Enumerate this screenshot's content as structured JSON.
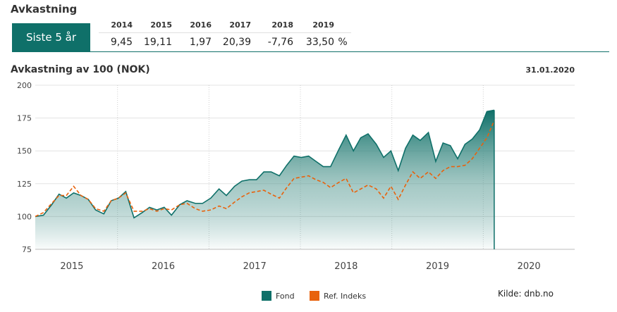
{
  "header": {
    "title": "Avkastning",
    "tab_label": "Siste 5 år"
  },
  "returns": {
    "years": [
      "2014",
      "2015",
      "2016",
      "2017",
      "2018",
      "2019"
    ],
    "values": [
      "9,45",
      "19,11",
      "1,97",
      "20,39",
      "-7,76",
      "33,50"
    ],
    "unit": "%"
  },
  "chart_data": {
    "type": "area",
    "title": "Avkastning av 100 (NOK)",
    "date": "31.01.2020",
    "ylim": [
      75,
      200
    ],
    "yticks": [
      75,
      100,
      125,
      150,
      175,
      200
    ],
    "xlim": [
      2014.6,
      2020.5
    ],
    "xlabels": [
      "2015",
      "2016",
      "2017",
      "2018",
      "2019",
      "2020"
    ],
    "grid": "horizontal solid, vertical dotted at year boundaries",
    "legend_position": "bottom-center",
    "series": [
      {
        "name": "Fond",
        "color": "#0f7069",
        "x": [
          2014.6,
          2014.69,
          2014.78,
          2014.86,
          2014.94,
          2015.02,
          2015.1,
          2015.18,
          2015.26,
          2015.35,
          2015.43,
          2015.51,
          2015.59,
          2015.68,
          2015.77,
          2015.85,
          2015.93,
          2016.01,
          2016.09,
          2016.18,
          2016.26,
          2016.35,
          2016.43,
          2016.52,
          2016.61,
          2016.69,
          2016.78,
          2016.86,
          2016.94,
          2017.02,
          2017.1,
          2017.18,
          2017.27,
          2017.35,
          2017.43,
          2017.51,
          2017.59,
          2017.67,
          2017.75,
          2017.83,
          2017.92,
          2018.0,
          2018.08,
          2018.16,
          2018.24,
          2018.33,
          2018.41,
          2018.49,
          2018.57,
          2018.65,
          2018.73,
          2018.81,
          2018.9,
          2018.98,
          2019.06,
          2019.14,
          2019.22,
          2019.3,
          2019.38,
          2019.46,
          2019.54,
          2019.62,
          2019.7,
          2019.78,
          2019.86
        ],
        "y": [
          100,
          101,
          109,
          117,
          114,
          118,
          116,
          113,
          105,
          102,
          112,
          114,
          119,
          99,
          103,
          107,
          105,
          107,
          101,
          109,
          112,
          110,
          110,
          114,
          121,
          116,
          123,
          127,
          128,
          128,
          134,
          134,
          131,
          139,
          146,
          145,
          146,
          142,
          138,
          138,
          151,
          162,
          150,
          160,
          163,
          155,
          145,
          150,
          135,
          152,
          162,
          158,
          164,
          142,
          156,
          154,
          144,
          155,
          159,
          166,
          180,
          181,
          null,
          null,
          null
        ],
        "y_last": 181
      },
      {
        "name": "Ref. Indeks",
        "color": "#e8620c",
        "style": "dashed",
        "x": [
          2014.6,
          2014.69,
          2014.78,
          2014.86,
          2014.94,
          2015.02,
          2015.1,
          2015.18,
          2015.26,
          2015.35,
          2015.43,
          2015.51,
          2015.59,
          2015.68,
          2015.77,
          2015.85,
          2015.93,
          2016.01,
          2016.09,
          2016.18,
          2016.26,
          2016.35,
          2016.43,
          2016.52,
          2016.61,
          2016.69,
          2016.78,
          2016.86,
          2016.94,
          2017.02,
          2017.1,
          2017.18,
          2017.27,
          2017.35,
          2017.43,
          2017.51,
          2017.59,
          2017.67,
          2017.75,
          2017.83,
          2017.92,
          2018.0,
          2018.08,
          2018.16,
          2018.24,
          2018.33,
          2018.41,
          2018.49,
          2018.57,
          2018.65,
          2018.73,
          2018.81,
          2018.9,
          2018.98,
          2019.06,
          2019.14,
          2019.22,
          2019.3,
          2019.38,
          2019.46,
          2019.54,
          2019.62
        ],
        "y": [
          100,
          103,
          110,
          116,
          116,
          123,
          116,
          113,
          106,
          104,
          112,
          114,
          118,
          104,
          104,
          106,
          104,
          106,
          105,
          109,
          110,
          106,
          104,
          105,
          108,
          106,
          111,
          115,
          118,
          119,
          120,
          117,
          114,
          122,
          129,
          130,
          131,
          128,
          126,
          122,
          126,
          129,
          118,
          121,
          124,
          121,
          114,
          123,
          113,
          124,
          134,
          129,
          134,
          129,
          135,
          138,
          138,
          139,
          144,
          152,
          160,
          173
        ]
      }
    ]
  },
  "legend": {
    "fond": "Fond",
    "ref": "Ref. Indeks"
  },
  "source": "Kilde: dnb.no"
}
